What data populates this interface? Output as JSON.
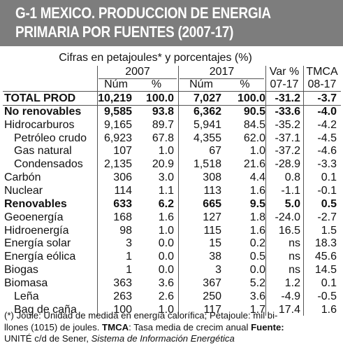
{
  "title_line1": "G-1  MEXICO. PRODUCCION DE ENERGIA",
  "title_line2": "PRIMARIA POR FUENTES (2007-17)",
  "subtitle": "Cifras en petajoules* y porcentajes (%)",
  "chart_data": {
    "type": "table",
    "group_headers": [
      "2007",
      "2017",
      "Var %",
      "TMCA"
    ],
    "sub_headers": [
      "Núm",
      "%",
      "Núm",
      "%",
      "07-17",
      "08-17"
    ],
    "rows": [
      {
        "label": "TOTAL PROD",
        "values": [
          "10,219",
          "100.0",
          "7,027",
          "100.0",
          "-31.2",
          "-3.7"
        ],
        "bold": true,
        "indent": 0
      },
      {
        "label": "No renovables",
        "values": [
          "9,585",
          "93.8",
          "6,362",
          "90.5",
          "-33.6",
          "-4.0"
        ],
        "bold": true,
        "indent": 0
      },
      {
        "label": "Hidrocarburos",
        "values": [
          "9,165",
          "89.7",
          "5,941",
          "84.5",
          "-35.2",
          "-4.2"
        ],
        "bold": false,
        "indent": 0
      },
      {
        "label": "Petróleo crudo",
        "values": [
          "6,923",
          "67.8",
          "4,355",
          "62.0",
          "-37.1",
          "-4.5"
        ],
        "bold": false,
        "indent": 1
      },
      {
        "label": "Gas natural",
        "values": [
          "107",
          "1.0",
          "67",
          "1.0",
          "-37.2",
          "-4.6"
        ],
        "bold": false,
        "indent": 1
      },
      {
        "label": "Condensados",
        "values": [
          "2,135",
          "20.9",
          "1,518",
          "21.6",
          "-28.9",
          "-3.3"
        ],
        "bold": false,
        "indent": 1
      },
      {
        "label": "Carbón",
        "values": [
          "306",
          "3.0",
          "308",
          "4.4",
          "0.8",
          "0.1"
        ],
        "bold": false,
        "indent": 0
      },
      {
        "label": "Nuclear",
        "values": [
          "114",
          "1.1",
          "113",
          "1.6",
          "-1.1",
          "-0.1"
        ],
        "bold": false,
        "indent": 0
      },
      {
        "label": "Renovables",
        "values": [
          "633",
          "6.2",
          "665",
          "9.5",
          "5.0",
          "0.5"
        ],
        "bold": true,
        "indent": 0
      },
      {
        "label": "Geoenergía",
        "values": [
          "168",
          "1.6",
          "127",
          "1.8",
          "-24.0",
          "-2.7"
        ],
        "bold": false,
        "indent": 0
      },
      {
        "label": "Hidroenergía",
        "values": [
          "98",
          "1.0",
          "115",
          "1.6",
          "16.5",
          "1.5"
        ],
        "bold": false,
        "indent": 0
      },
      {
        "label": "Energía solar",
        "values": [
          "3",
          "0.0",
          "15",
          "0.2",
          "ns",
          "18.3"
        ],
        "bold": false,
        "indent": 0
      },
      {
        "label": "Energía eólica",
        "values": [
          "1",
          "0.0",
          "38",
          "0.5",
          "ns",
          "45.6"
        ],
        "bold": false,
        "indent": 0
      },
      {
        "label": "Biogas",
        "values": [
          "1",
          "0.0",
          "3",
          "0.0",
          "ns",
          "14.5"
        ],
        "bold": false,
        "indent": 0
      },
      {
        "label": "Biomasa",
        "values": [
          "363",
          "3.6",
          "367",
          "5.2",
          "1.2",
          "0.1"
        ],
        "bold": false,
        "indent": 0
      },
      {
        "label": "Leña",
        "values": [
          "263",
          "2.6",
          "250",
          "3.6",
          "-4.9",
          "-0.5"
        ],
        "bold": false,
        "indent": 1
      },
      {
        "label": "Bag de caña",
        "values": [
          "100",
          "1.0",
          "117",
          "1.7",
          "17.4",
          "1.6"
        ],
        "bold": false,
        "indent": 1
      }
    ]
  },
  "footnote": {
    "line1": "(*) Joule: Unidad de medida en energía calorífica; Petajoule: mil bi-",
    "line2_text": "llones (1015) de joules. ",
    "line2_bold": "TMCA",
    "line2_rest": ": Tasa media de crecim anual  ",
    "line2_source_label": "Fuente:",
    "line3_text": "UNITÉ c/d de Sener, ",
    "line3_italic": "Sistema de Información Energética"
  }
}
